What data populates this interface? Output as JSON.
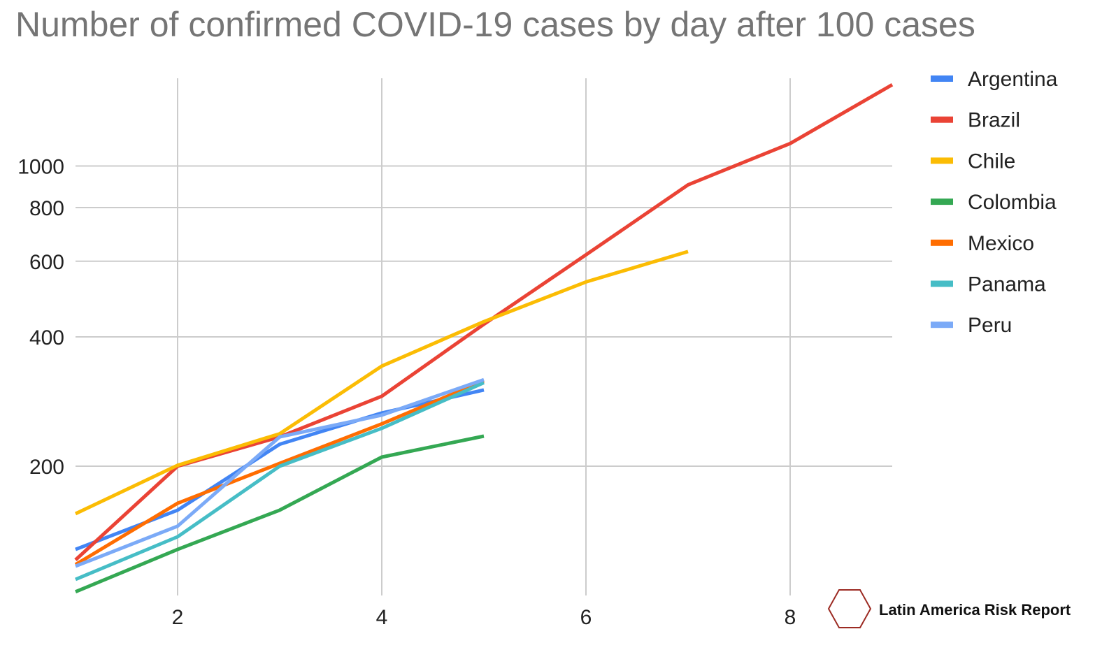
{
  "chart_data": {
    "type": "line",
    "title": "Number of confirmed COVID-19 cases by day after 100 cases",
    "xlabel": "",
    "ylabel": "",
    "y_scale": "log",
    "xlim": [
      1,
      9
    ],
    "ylim": [
      100,
      1600
    ],
    "x_ticks": [
      2,
      4,
      6,
      8
    ],
    "y_ticks": [
      200,
      400,
      600,
      800,
      1000
    ],
    "grid": true,
    "legend_position": "right",
    "series": [
      {
        "name": "Argentina",
        "color": "#4285f4",
        "x": [
          1,
          2,
          3,
          4,
          5
        ],
        "y": [
          128,
          158,
          225,
          266,
          301
        ]
      },
      {
        "name": "Brazil",
        "color": "#ea4335",
        "x": [
          1,
          2,
          3,
          4,
          5,
          6,
          7,
          8,
          9
        ],
        "y": [
          121,
          200,
          234,
          291,
          428,
          621,
          904,
          1128,
          1546
        ]
      },
      {
        "name": "Chile",
        "color": "#fbbc04",
        "x": [
          1,
          2,
          3,
          4,
          5,
          6,
          7
        ],
        "y": [
          155,
          201,
          238,
          342,
          434,
          537,
          632
        ]
      },
      {
        "name": "Colombia",
        "color": "#34a853",
        "x": [
          1,
          2,
          3,
          4,
          5
        ],
        "y": [
          102,
          128,
          158,
          210,
          235
        ]
      },
      {
        "name": "Mexico",
        "color": "#ff6d01",
        "x": [
          1,
          2,
          3,
          4,
          5
        ],
        "y": [
          118,
          164,
          203,
          251,
          316
        ]
      },
      {
        "name": "Panama",
        "color": "#46bdc6",
        "x": [
          1,
          2,
          3,
          4,
          5
        ],
        "y": [
          109,
          137,
          200,
          245,
          313
        ]
      },
      {
        "name": "Peru",
        "color": "#7baaf7",
        "x": [
          1,
          2,
          3,
          4,
          5
        ],
        "y": [
          117,
          145,
          234,
          263,
          318
        ]
      }
    ]
  },
  "watermark": {
    "text": "Latin America Risk Report",
    "icon": "hexagon-logo-icon",
    "color": "#9c2b23"
  }
}
